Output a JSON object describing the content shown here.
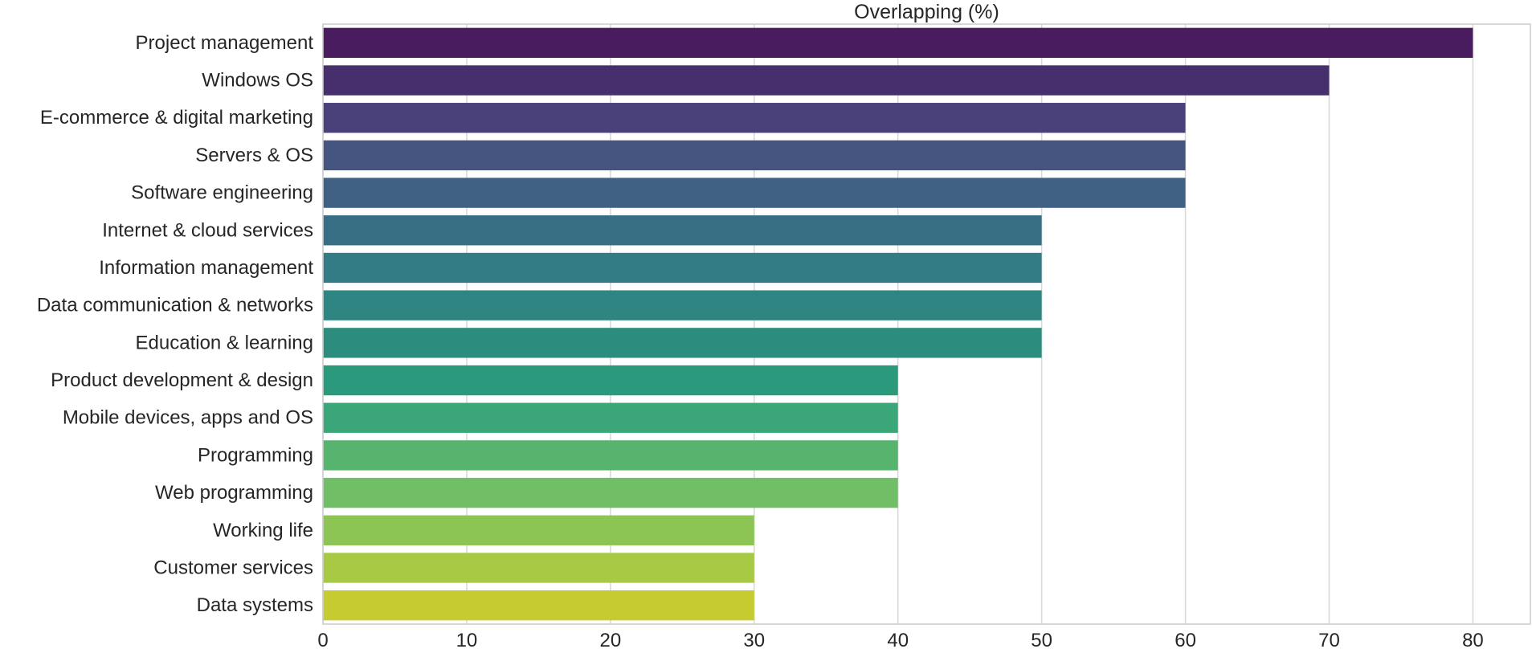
{
  "chart_data": {
    "type": "bar",
    "orientation": "horizontal",
    "title": "Overlapping (%)",
    "xlabel": "",
    "ylabel": "",
    "xlim": [
      0,
      84
    ],
    "x_ticks": [
      0,
      10,
      20,
      30,
      40,
      50,
      60,
      70,
      80
    ],
    "grid": true,
    "categories": [
      "Project management",
      "Windows OS",
      "E-commerce & digital marketing",
      "Servers & OS",
      "Software engineering",
      "Internet & cloud services",
      "Information management",
      "Data communication & networks",
      "Education & learning",
      "Product development & design",
      "Mobile devices, apps and OS",
      "Programming",
      "Web programming",
      "Working life",
      "Customer services",
      "Data systems"
    ],
    "values": [
      80,
      70,
      60,
      60,
      60,
      50,
      50,
      50,
      50,
      40,
      40,
      40,
      40,
      30,
      30,
      30
    ],
    "colors": [
      "#481c5e",
      "#472f6e",
      "#4a417b",
      "#455580",
      "#406183",
      "#386e84",
      "#337b85",
      "#2f8581",
      "#2c8d7e",
      "#2b9a7c",
      "#3ba678",
      "#57b46e",
      "#70bf67",
      "#8cc554",
      "#a8c943",
      "#c6cc30"
    ]
  }
}
